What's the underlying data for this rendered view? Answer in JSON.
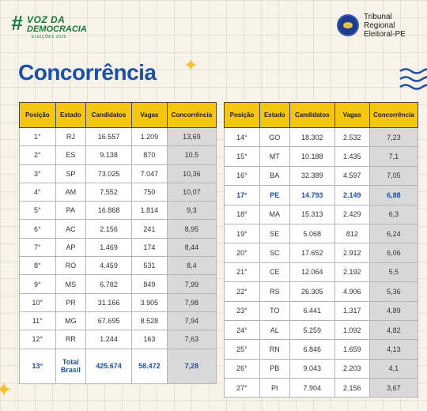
{
  "brand": {
    "campaign_hash": "#",
    "campaign_line1": "VOZ DA",
    "campaign_line2": "DEMOCRACIA",
    "campaign_line3": "ELEIÇÕES 2025",
    "court_line1": "Tribunal",
    "court_line2": "Regional",
    "court_line3": "Eleitoral-PE"
  },
  "page": {
    "title": "Concorrência"
  },
  "headers": [
    "Posição",
    "Estado",
    "Candidatos",
    "Vagas",
    "Concorrência"
  ],
  "left_rows": [
    {
      "pos": "1°",
      "estado": "RJ",
      "cand": "16.557",
      "vagas": "1.209",
      "conc": "13,69"
    },
    {
      "pos": "2°",
      "estado": "ES",
      "cand": "9.138",
      "vagas": "870",
      "conc": "10,5"
    },
    {
      "pos": "3°",
      "estado": "SP",
      "cand": "73.025",
      "vagas": "7.047",
      "conc": "10,36"
    },
    {
      "pos": "4°",
      "estado": "AM",
      "cand": "7.552",
      "vagas": "750",
      "conc": "10,07"
    },
    {
      "pos": "5°",
      "estado": "PA",
      "cand": "16.868",
      "vagas": "1.814",
      "conc": "9,3"
    },
    {
      "pos": "6°",
      "estado": "AC",
      "cand": "2.156",
      "vagas": "241",
      "conc": "8,95"
    },
    {
      "pos": "7°",
      "estado": "AP",
      "cand": "1.469",
      "vagas": "174",
      "conc": "8,44"
    },
    {
      "pos": "8°",
      "estado": "RO",
      "cand": "4.459",
      "vagas": "531",
      "conc": "8,4"
    },
    {
      "pos": "9°",
      "estado": "MS",
      "cand": "6.782",
      "vagas": "849",
      "conc": "7,99"
    },
    {
      "pos": "10°",
      "estado": "PR",
      "cand": "31.166",
      "vagas": "3.905",
      "conc": "7,98"
    },
    {
      "pos": "11°",
      "estado": "MG",
      "cand": "67.695",
      "vagas": "8.528",
      "conc": "7,94"
    },
    {
      "pos": "12°",
      "estado": "RR",
      "cand": "1.244",
      "vagas": "163",
      "conc": "7,63"
    }
  ],
  "total_row": {
    "pos": "13°",
    "estado": "Total Brasil",
    "cand": "425.674",
    "vagas": "58.472",
    "conc": "7,28"
  },
  "right_rows": [
    {
      "pos": "14°",
      "estado": "GO",
      "cand": "18.302",
      "vagas": "2.532",
      "conc": "7,23"
    },
    {
      "pos": "15°",
      "estado": "MT",
      "cand": "10.188",
      "vagas": "1.435",
      "conc": "7,1"
    },
    {
      "pos": "16°",
      "estado": "BA",
      "cand": "32.389",
      "vagas": "4.597",
      "conc": "7,05"
    },
    {
      "pos": "17°",
      "estado": "PE",
      "cand": "14.793",
      "vagas": "2.149",
      "conc": "6,88",
      "highlight": true
    },
    {
      "pos": "18°",
      "estado": "MA",
      "cand": "15.313",
      "vagas": "2.429",
      "conc": "6,3"
    },
    {
      "pos": "19°",
      "estado": "SE",
      "cand": "5.068",
      "vagas": "812",
      "conc": "6,24"
    },
    {
      "pos": "20°",
      "estado": "SC",
      "cand": "17.652",
      "vagas": "2.912",
      "conc": "6,06"
    },
    {
      "pos": "21°",
      "estado": "CE",
      "cand": "12.064",
      "vagas": "2.192",
      "conc": "5,5"
    },
    {
      "pos": "22°",
      "estado": "RS",
      "cand": "26.305",
      "vagas": "4.906",
      "conc": "5,36"
    },
    {
      "pos": "23°",
      "estado": "TO",
      "cand": "6.441",
      "vagas": "1.317",
      "conc": "4,89"
    },
    {
      "pos": "24°",
      "estado": "AL",
      "cand": "5.259",
      "vagas": "1.092",
      "conc": "4,82"
    },
    {
      "pos": "25°",
      "estado": "RN",
      "cand": "6.846",
      "vagas": "1.659",
      "conc": "4,13"
    },
    {
      "pos": "26°",
      "estado": "PB",
      "cand": "9.043",
      "vagas": "2.203",
      "conc": "4,1"
    },
    {
      "pos": "27°",
      "estado": "PI",
      "cand": "7.904",
      "vagas": "2.156",
      "conc": "3,67"
    }
  ],
  "colors": {
    "accent": "#1e4fa8",
    "header": "#f5c60f",
    "brand_green": "#1a7a3a",
    "sparkle": "#f5c22a"
  },
  "icons": [
    "sparkle-icon",
    "waves-icon",
    "tre-seal-icon"
  ]
}
